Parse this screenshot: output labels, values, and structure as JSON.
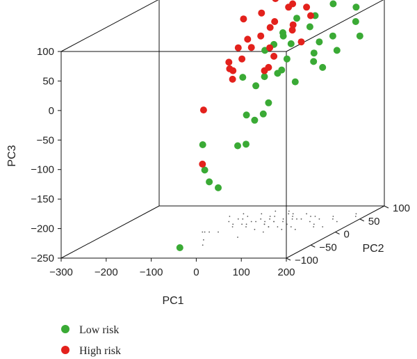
{
  "chart_data": {
    "type": "scatter",
    "projection": "3d",
    "axes": {
      "x": {
        "label": "PC1",
        "range": [
          -300,
          200
        ],
        "ticks": [
          -300,
          -200,
          -100,
          0,
          100,
          200
        ]
      },
      "y": {
        "label": "PC2",
        "range": [
          -100,
          100
        ],
        "ticks": [
          -100,
          -50,
          0,
          50,
          100
        ]
      },
      "z": {
        "label": "PC3",
        "range": [
          -250,
          100
        ],
        "ticks": [
          -250,
          -200,
          -150,
          -100,
          -50,
          0,
          50,
          100
        ]
      }
    },
    "grid": false,
    "legend_position": "bottom-left",
    "legend": [
      {
        "label": "Low risk",
        "color": "#3aaa35"
      },
      {
        "label": "High risk",
        "color": "#e3211c"
      }
    ],
    "series": [
      {
        "name": "Low risk",
        "color": "#3aaa35",
        "points": [
          [
            -80,
            -60,
            -250
          ],
          [
            -60,
            0,
            -175
          ],
          [
            -80,
            0,
            -165
          ],
          [
            -90,
            0,
            -145
          ],
          [
            -40,
            -50,
            -80
          ],
          [
            5,
            -20,
            -95
          ],
          [
            -20,
            20,
            -110
          ],
          [
            10,
            10,
            -65
          ],
          [
            40,
            0,
            -50
          ],
          [
            -30,
            30,
            -65
          ],
          [
            -20,
            40,
            -20
          ],
          [
            30,
            20,
            -40
          ],
          [
            -60,
            50,
            -10
          ],
          [
            10,
            30,
            0
          ],
          [
            50,
            20,
            10
          ],
          [
            100,
            10,
            0
          ],
          [
            60,
            30,
            30
          ],
          [
            20,
            40,
            50
          ],
          [
            80,
            20,
            60
          ],
          [
            120,
            30,
            40
          ],
          [
            150,
            20,
            20
          ],
          [
            100,
            40,
            80
          ],
          [
            60,
            50,
            90
          ],
          [
            140,
            50,
            60
          ],
          [
            160,
            40,
            40
          ],
          [
            180,
            60,
            80
          ],
          [
            200,
            50,
            60
          ],
          [
            170,
            70,
            100
          ],
          [
            130,
            60,
            110
          ],
          [
            90,
            60,
            90
          ],
          [
            40,
            40,
            70
          ],
          [
            110,
            50,
            50
          ],
          [
            0,
            40,
            40
          ],
          [
            70,
            10,
            20
          ],
          [
            30,
            50,
            60
          ],
          [
            130,
            20,
            30
          ]
        ]
      },
      {
        "name": "High risk",
        "color": "#e3211c",
        "points": [
          [
            -95,
            0,
            -135
          ],
          [
            -60,
            -30,
            -30
          ],
          [
            -100,
            60,
            0
          ],
          [
            -80,
            40,
            20
          ],
          [
            -40,
            30,
            30
          ],
          [
            -60,
            60,
            50
          ],
          [
            -20,
            50,
            60
          ],
          [
            0,
            60,
            80
          ],
          [
            -40,
            70,
            90
          ],
          [
            20,
            70,
            100
          ],
          [
            40,
            60,
            110
          ],
          [
            60,
            70,
            100
          ],
          [
            -20,
            80,
            110
          ],
          [
            0,
            50,
            40
          ],
          [
            20,
            40,
            30
          ],
          [
            -50,
            20,
            0
          ],
          [
            10,
            30,
            10
          ],
          [
            -70,
            50,
            40
          ],
          [
            80,
            60,
            90
          ],
          [
            30,
            70,
            70
          ],
          [
            -10,
            60,
            70
          ],
          [
            50,
            50,
            70
          ],
          [
            -30,
            40,
            45
          ],
          [
            -80,
            70,
            80
          ],
          [
            10,
            80,
            120
          ],
          [
            70,
            50,
            50
          ],
          [
            -60,
            30,
            10
          ],
          [
            30,
            20,
            20
          ]
        ]
      }
    ]
  }
}
